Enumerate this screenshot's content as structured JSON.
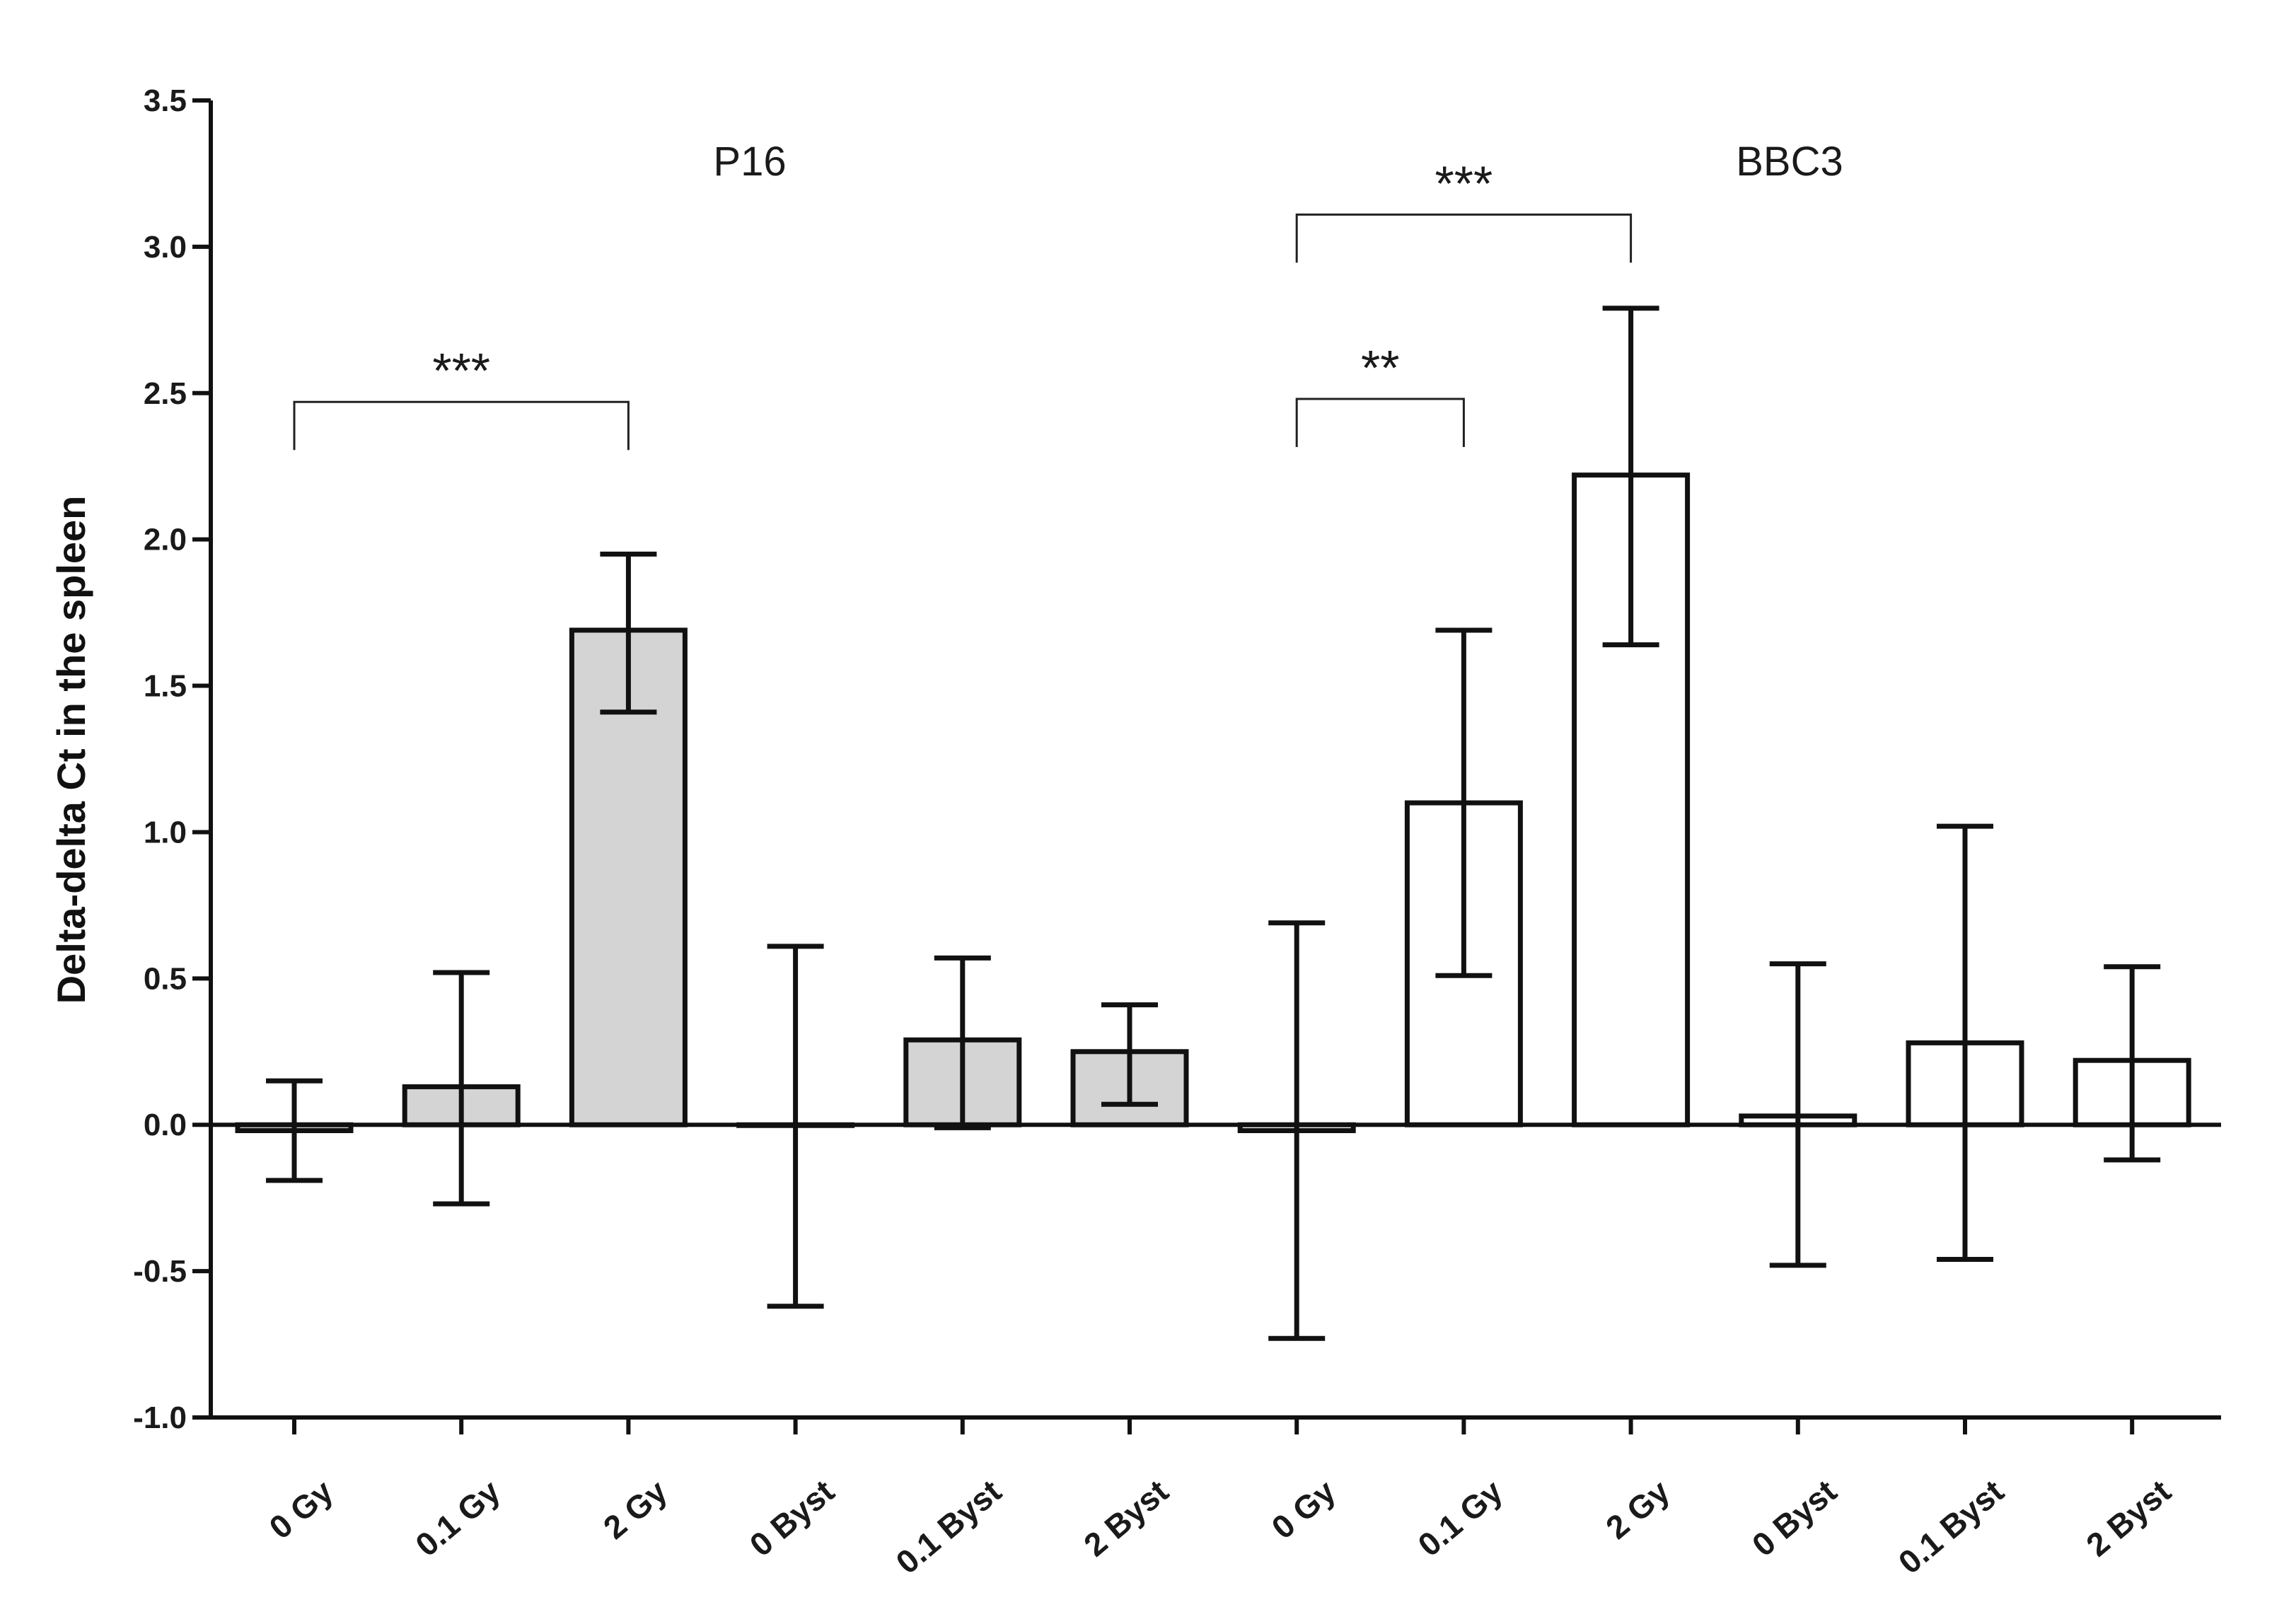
{
  "chart_data": {
    "type": "bar",
    "title": "",
    "xlabel": "",
    "ylabel": "Delta-delta Ct in the spleen",
    "ylim": [
      -1.0,
      3.5
    ],
    "yticks": [
      -1.0,
      -0.5,
      0.0,
      0.5,
      1.0,
      1.5,
      2.0,
      2.5,
      3.0,
      3.5
    ],
    "ytick_labels": [
      "-1.0",
      "-0.5",
      "0.0",
      "0.5",
      "1.0",
      "1.5",
      "2.0",
      "2.5",
      "3.0",
      "3.5"
    ],
    "colors": {
      "P16": "#d4d4d4",
      "BBC3": "#ffffff",
      "stroke": "#111111"
    },
    "groups": [
      {
        "name": "P16",
        "categories": [
          "0 Gy",
          "0.1 Gy",
          "2 Gy",
          "0 Byst",
          "0.1 Byst",
          "2 Byst"
        ],
        "values": [
          -0.02,
          0.13,
          1.69,
          0.0,
          0.29,
          0.25
        ],
        "err_low": [
          -0.19,
          -0.27,
          1.41,
          -0.62,
          -0.01,
          0.07
        ],
        "err_high": [
          0.15,
          0.52,
          1.95,
          0.61,
          0.57,
          0.41
        ]
      },
      {
        "name": "BBC3",
        "categories": [
          "0 Gy",
          "0.1 Gy",
          "2 Gy",
          "0 Byst",
          "0.1 Byst",
          "2 Byst"
        ],
        "values": [
          -0.02,
          1.1,
          2.22,
          0.03,
          0.28,
          0.22
        ],
        "err_low": [
          -0.73,
          0.51,
          1.64,
          -0.48,
          -0.46,
          -0.12
        ],
        "err_high": [
          0.69,
          1.69,
          2.79,
          0.55,
          1.02,
          0.54
        ]
      }
    ],
    "significance": [
      {
        "label": "***",
        "from": 0,
        "to": 2,
        "level": 2.47
      },
      {
        "label": "**",
        "from": 6,
        "to": 7,
        "level": 2.48
      },
      {
        "label": "***",
        "from": 6,
        "to": 8,
        "level": 3.11
      }
    ]
  }
}
